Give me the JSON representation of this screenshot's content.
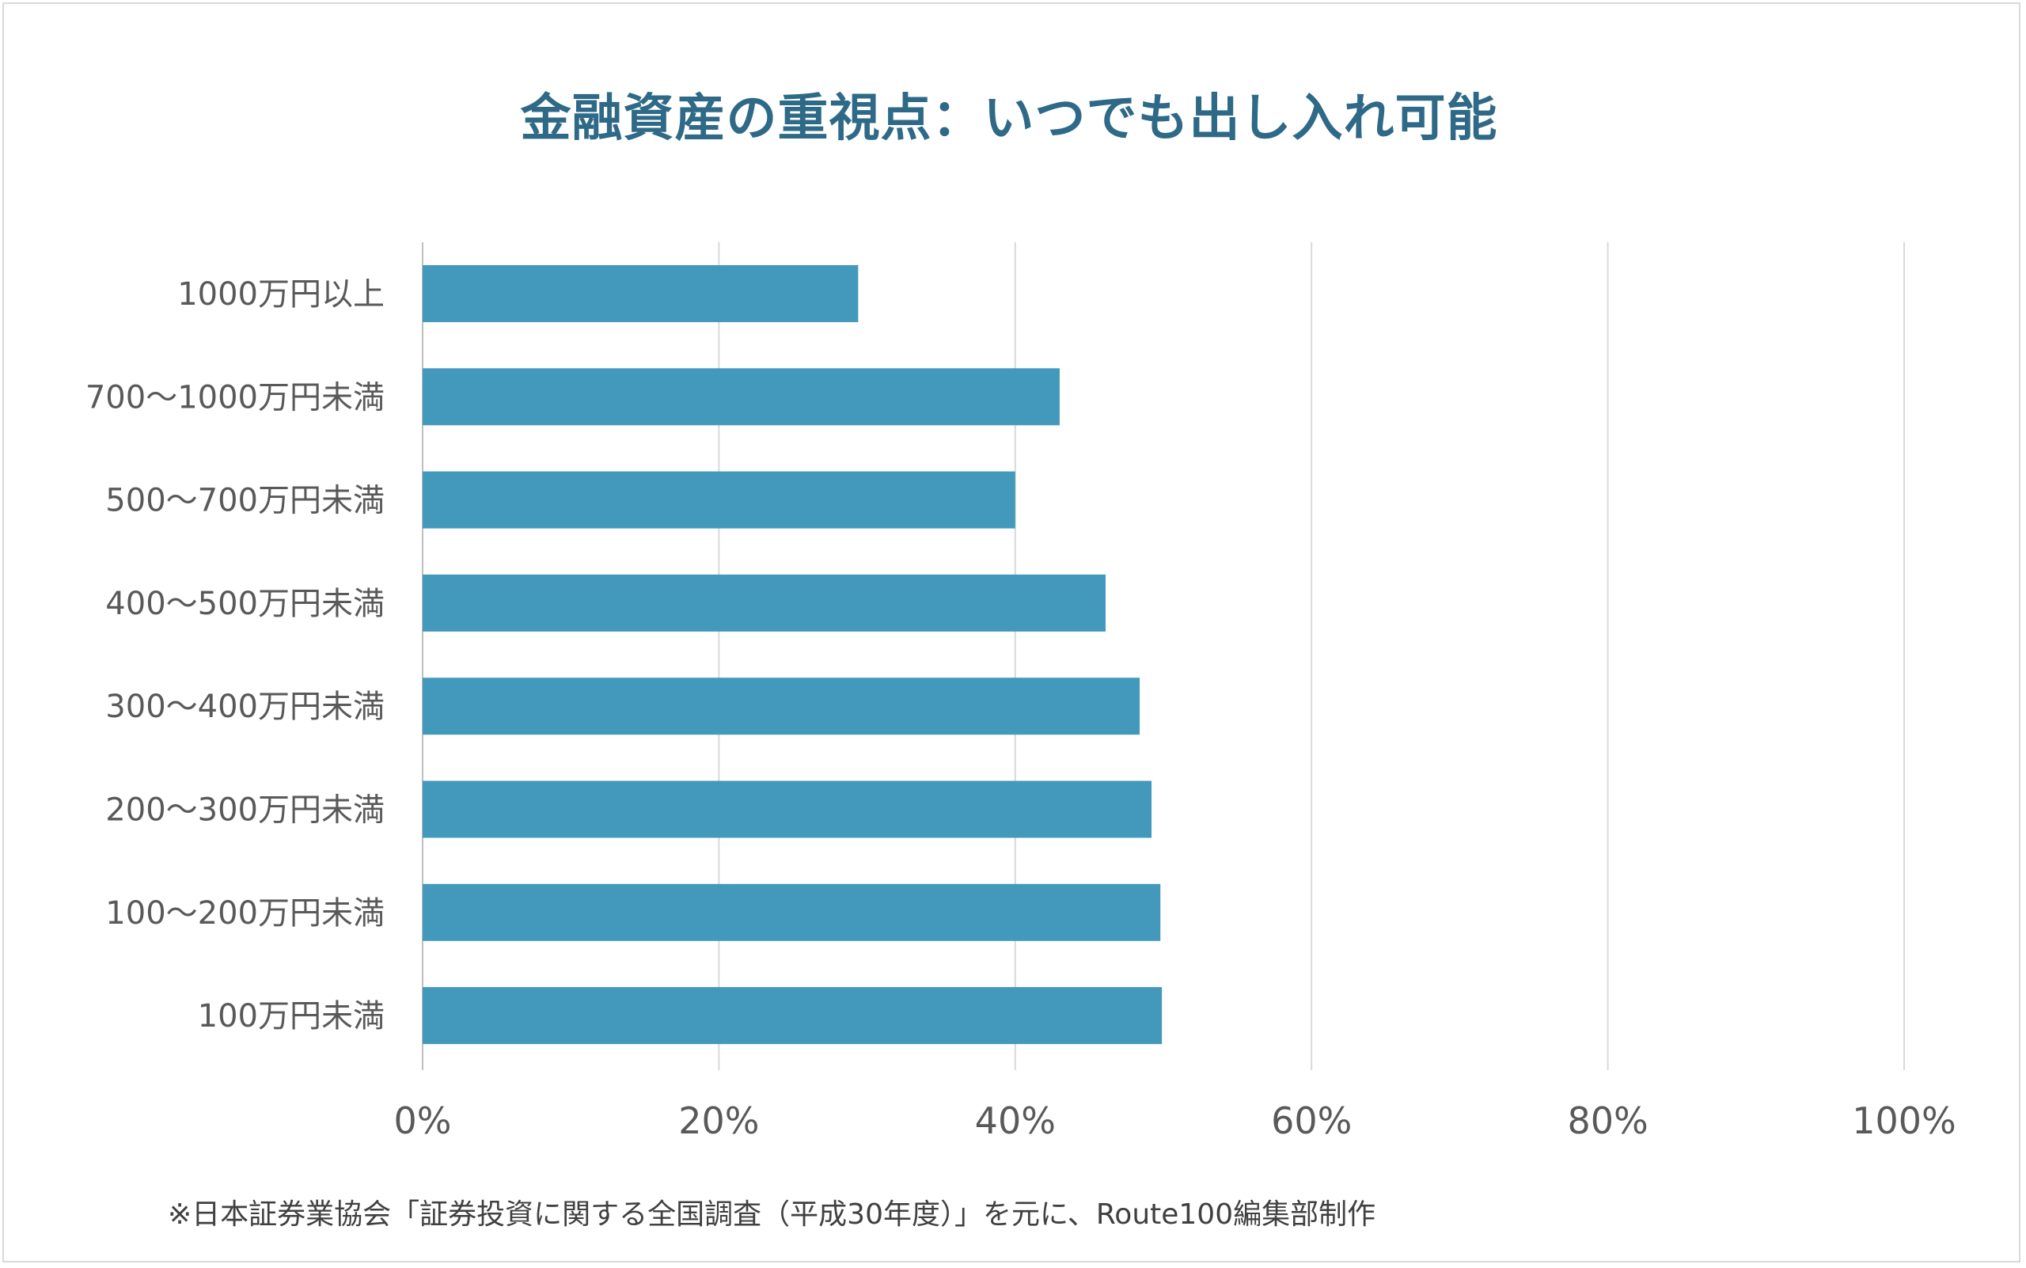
{
  "chart_data": {
    "type": "bar",
    "orientation": "horizontal",
    "title": "金融資産の重視点：いつでも出し入れ可能",
    "categories": [
      "1000万円以上",
      "700～1000万円未満",
      "500～700万円未満",
      "400～500万円未満",
      "300～400万円未満",
      "200～300万円未満",
      "100～200万円未満",
      "100万円未満"
    ],
    "values": [
      29.4,
      43.0,
      40.0,
      46.1,
      48.4,
      49.2,
      49.8,
      49.9
    ],
    "value_unit": "%",
    "xlim": [
      0,
      100
    ],
    "x_ticks": [
      "0%",
      "20%",
      "40%",
      "60%",
      "80%",
      "100%"
    ],
    "grid": true,
    "legend": "none",
    "bar_color": "#4299bc",
    "title_color": "#2e6a87",
    "note": "※日本証券業協会「証券投資に関する全国調査（平成30年度）」を元に、Route100編集部制作"
  }
}
